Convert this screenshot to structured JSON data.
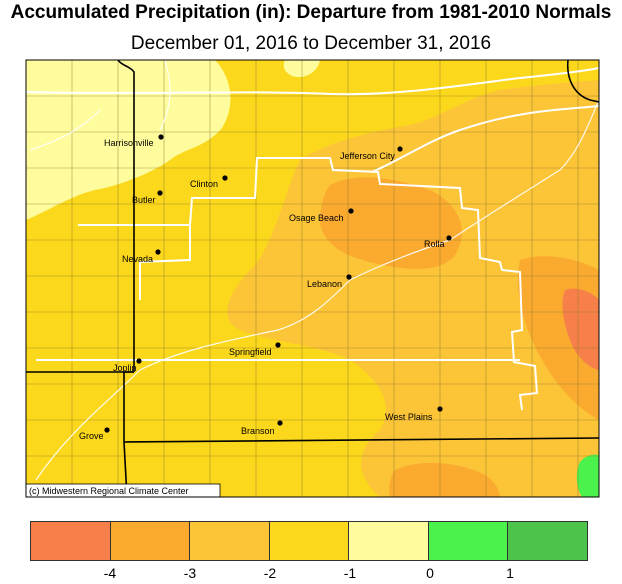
{
  "header": {
    "title": "Accumulated Precipitation (in): Departure from 1981-2010 Normals",
    "subtitle": "December 01, 2016 to December 31, 2016"
  },
  "map": {
    "credit": "(c) Midwestern Regional Climate Center",
    "cities": [
      {
        "name": "Harrisonville"
      },
      {
        "name": "Clinton"
      },
      {
        "name": "Butler"
      },
      {
        "name": "Jefferson City"
      },
      {
        "name": "Osage Beach"
      },
      {
        "name": "Rolla"
      },
      {
        "name": "Nevada"
      },
      {
        "name": "Lebanon"
      },
      {
        "name": "Springfield"
      },
      {
        "name": "Joplin"
      },
      {
        "name": "Branson"
      },
      {
        "name": "West Plains"
      },
      {
        "name": "Grove"
      }
    ]
  },
  "legend": {
    "colors": [
      "#f7804a",
      "#fbaa30",
      "#fcc437",
      "#fbd81c",
      "#fffc9e",
      "#4cf24c",
      "#4cc44c"
    ],
    "ticks": [
      "-4",
      "-3",
      "-2",
      "-1",
      "0",
      "1"
    ]
  }
}
